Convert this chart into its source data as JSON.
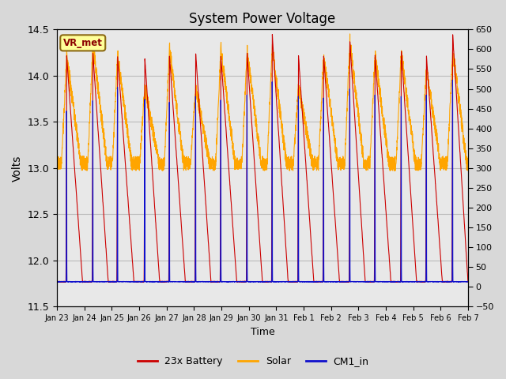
{
  "title": "System Power Voltage",
  "xlabel": "Time",
  "ylabel": "Volts",
  "ylim_left": [
    11.5,
    14.5
  ],
  "ylim_right": [
    -50,
    650
  ],
  "xtick_labels": [
    "Jan 23",
    "Jan 24",
    "Jan 25",
    "Jan 26",
    "Jan 27",
    "Jan 28",
    "Jan 29",
    "Jan 30",
    "Jan 31",
    "Feb 1",
    "Feb 2",
    "Feb 3",
    "Feb 4",
    "Feb 5",
    "Feb 6",
    "Feb 7"
  ],
  "color_battery": "#CC0000",
  "color_solar": "#FFA500",
  "color_cm1": "#1010CC",
  "legend_labels": [
    "23x Battery",
    "Solar",
    "CM1_in"
  ],
  "annotation_text": "VR_met",
  "bg_color": "#D8D8D8",
  "plot_bg_color": "#E8E8E8",
  "grid_color": "#BBBBBB",
  "n_days": 16,
  "pts_per_day": 200
}
